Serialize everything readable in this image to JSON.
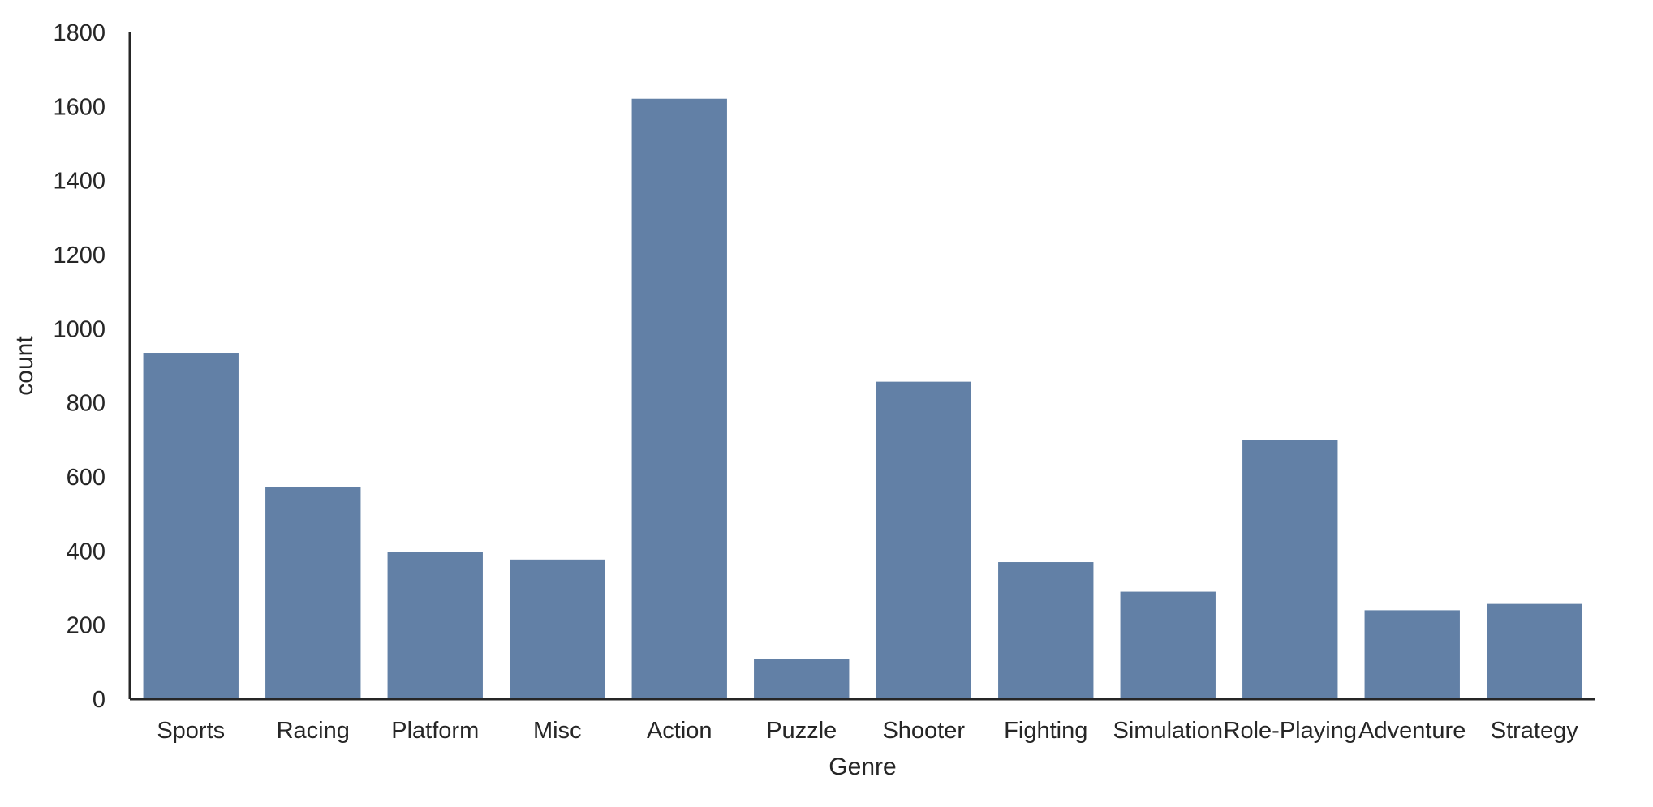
{
  "chart_data": {
    "type": "bar",
    "title": "",
    "xlabel": "Genre",
    "ylabel": "count",
    "categories": [
      "Sports",
      "Racing",
      "Platform",
      "Misc",
      "Action",
      "Puzzle",
      "Shooter",
      "Fighting",
      "Simulation",
      "Role-Playing",
      "Adventure",
      "Strategy"
    ],
    "values": [
      935,
      573,
      397,
      377,
      1621,
      108,
      857,
      370,
      290,
      699,
      240,
      257
    ],
    "ylim": [
      0,
      1800
    ],
    "yticks": [
      "0",
      "200",
      "400",
      "600",
      "800",
      "1000",
      "1200",
      "1400",
      "1600",
      "1800"
    ],
    "bar_color": "#6280a6",
    "axis_color": "#262626",
    "grid": false,
    "legend": "none"
  }
}
